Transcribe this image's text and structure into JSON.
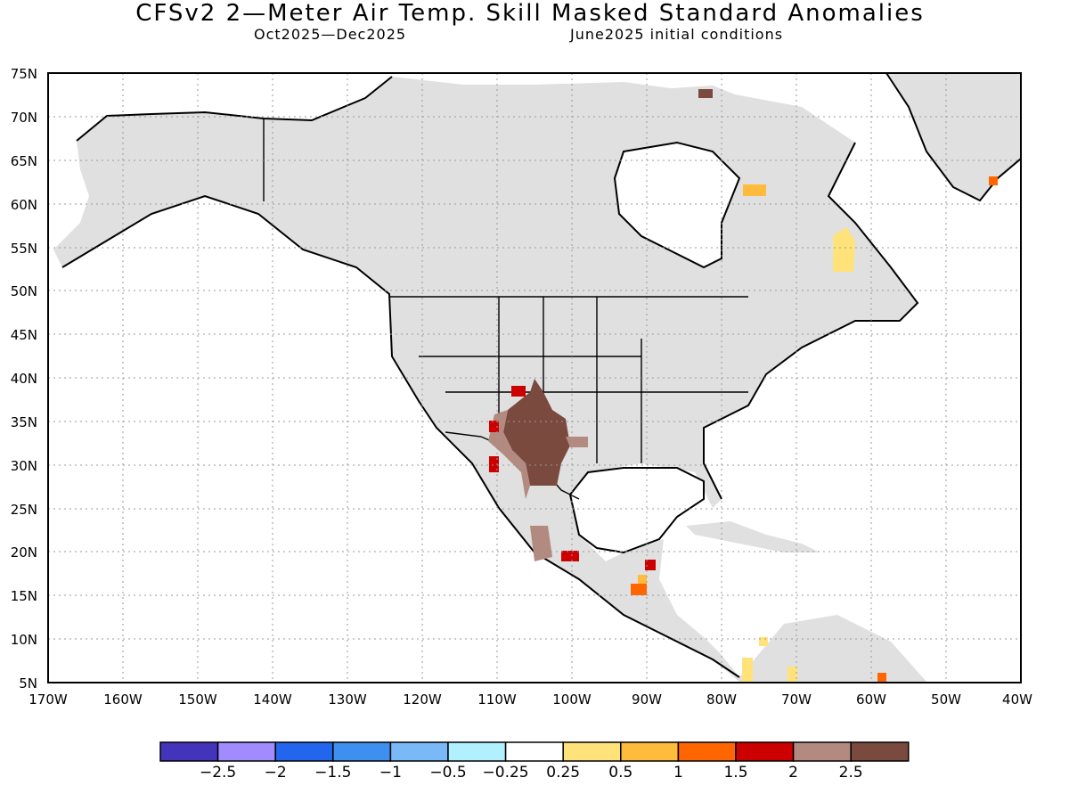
{
  "title": "CFSv2 2—Meter Air Temp. Skill Masked Standard Anomalies",
  "subtitle_left": "Oct2025—Dec2025",
  "subtitle_right": "June2025 initial conditions",
  "map": {
    "lon_range": [
      -170,
      -40
    ],
    "lat_range": [
      5,
      75
    ],
    "lat_labels": [
      "75N",
      "70N",
      "65N",
      "60N",
      "55N",
      "50N",
      "45N",
      "40N",
      "35N",
      "30N",
      "25N",
      "20N",
      "15N",
      "10N",
      "5N"
    ],
    "lon_labels": [
      "170W",
      "160W",
      "150W",
      "140W",
      "130W",
      "120W",
      "110W",
      "100W",
      "90W",
      "80W",
      "70W",
      "60W",
      "50W",
      "40W"
    ],
    "land_color": "#e0e0e0",
    "gridlines": "dotted"
  },
  "colorbar": {
    "colors": [
      "#4433bb",
      "#a08cff",
      "#2266ee",
      "#3d8ff0",
      "#7ab9f8",
      "#b0f0ff",
      "#ffffff",
      "#ffe27a",
      "#ffbb3c",
      "#ff6600",
      "#cc0000",
      "#b38a80",
      "#7a4a3f"
    ],
    "labels": [
      "−2.5",
      "−2",
      "−1.5",
      "−1",
      "−0.5",
      "−0.25",
      "0.25",
      "0.5",
      "1",
      "1.5",
      "2",
      "2.5"
    ]
  },
  "anomalies": [
    {
      "name": "southwest-us-brown",
      "value": 2.5
    },
    {
      "name": "new-mexico-red",
      "value": 2.0
    },
    {
      "name": "sonora-red",
      "value": 2.0
    },
    {
      "name": "mexico-central-brown",
      "value": 2.5
    },
    {
      "name": "baffin-brown",
      "value": 2.5
    },
    {
      "name": "quebec-yellow",
      "value": 0.5
    },
    {
      "name": "hudson-orange",
      "value": 1.0
    },
    {
      "name": "greenland-orange",
      "value": 1.5
    },
    {
      "name": "guatemala-orange",
      "value": 1.5
    },
    {
      "name": "colombia-yellow",
      "value": 0.5
    }
  ]
}
